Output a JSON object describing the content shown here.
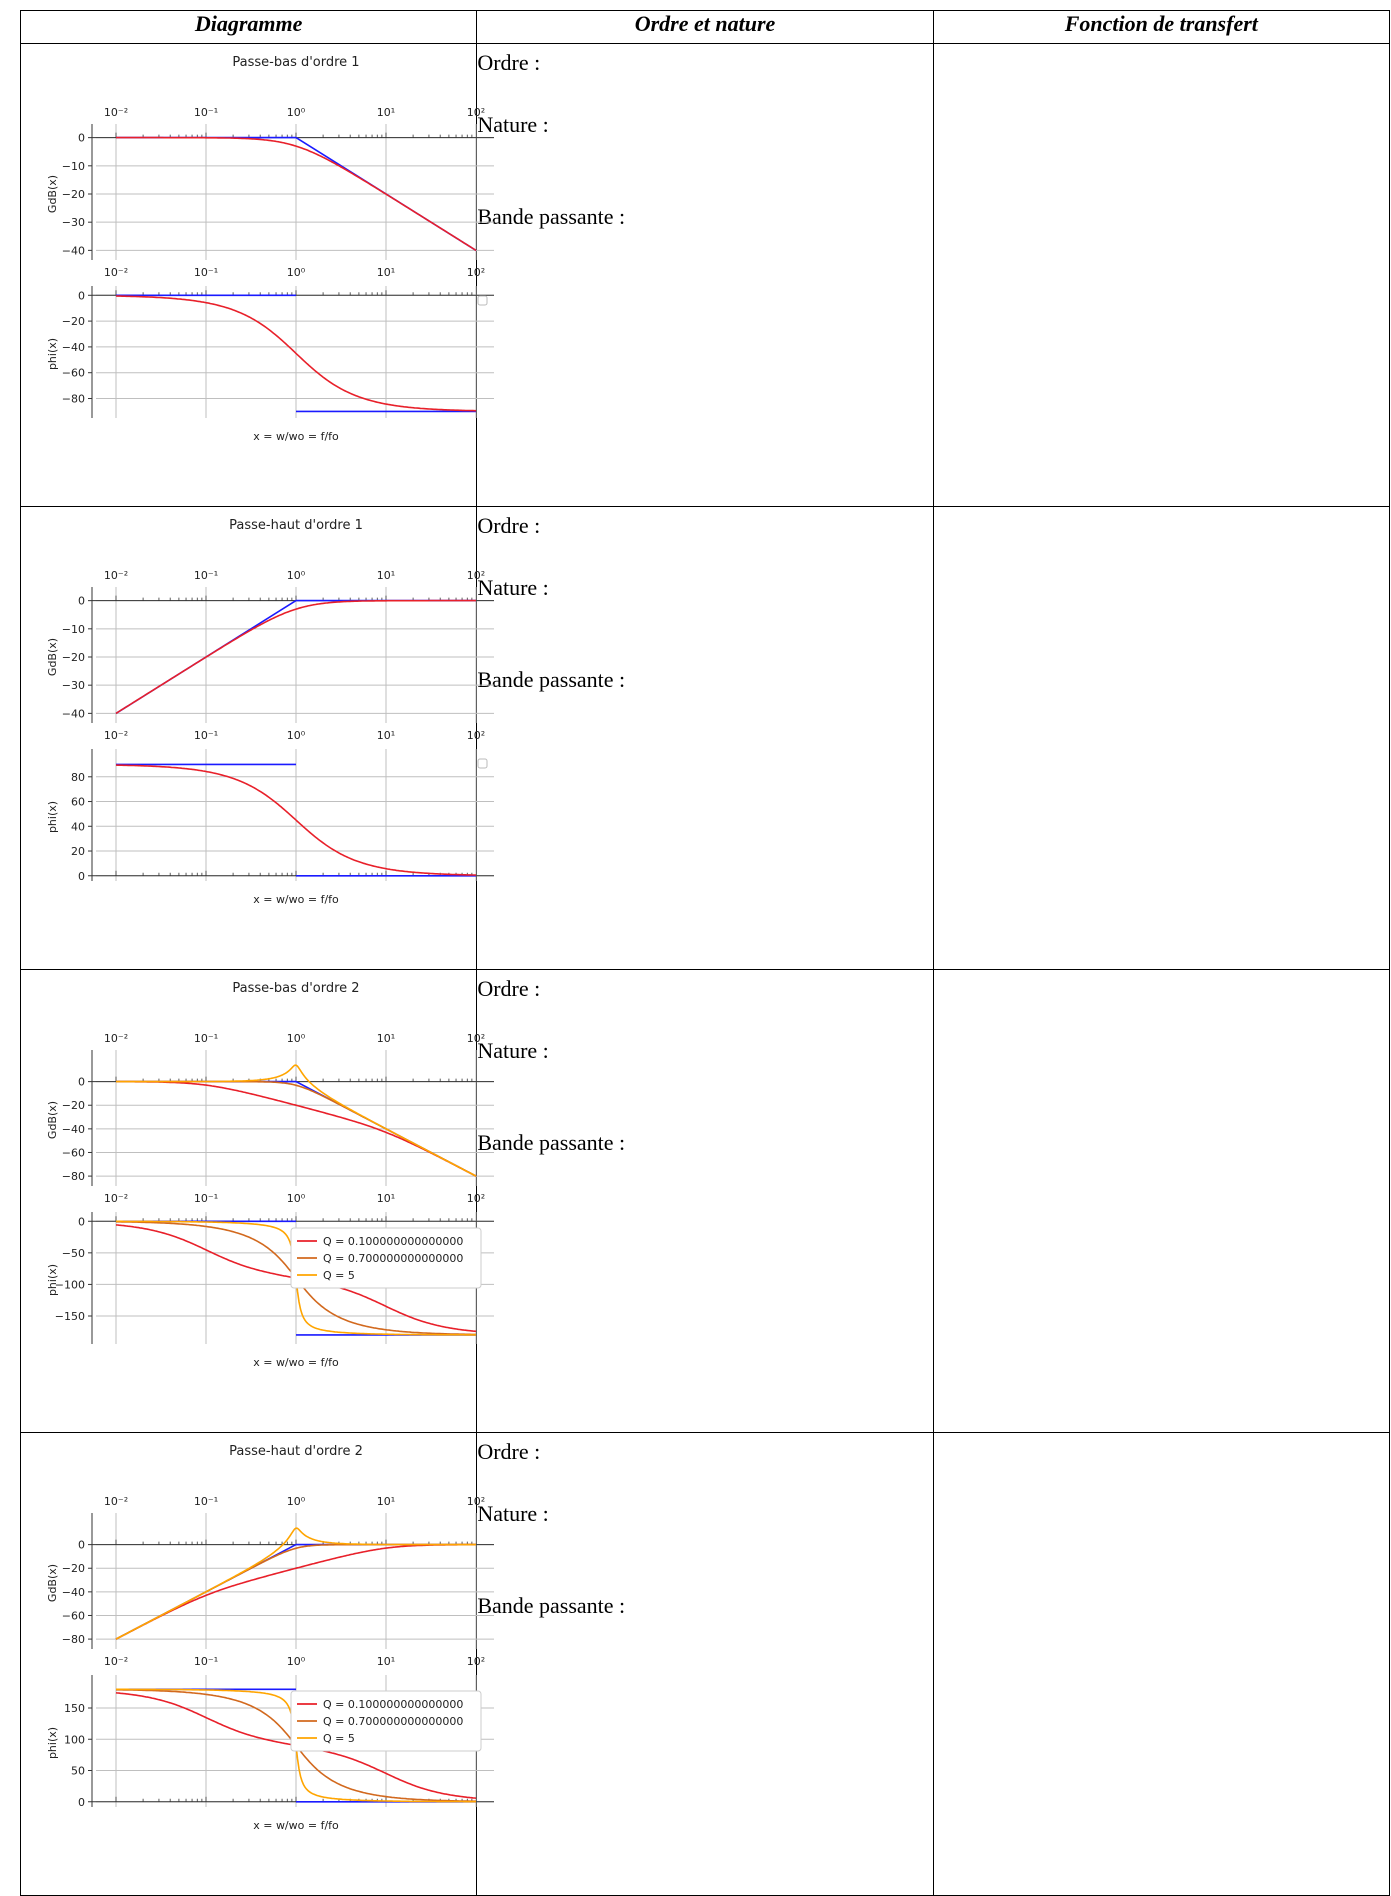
{
  "table": {
    "headers": [
      "Diagramme",
      "Ordre et nature",
      "Fonction de transfert"
    ],
    "row_labels": {
      "ordre": "Ordre :",
      "nature": "Nature :",
      "bande": "Bande passante :"
    }
  },
  "colors": {
    "asymptote": "#1a1aff",
    "q01": "#e8202a",
    "q07": "#d2691e",
    "q5": "#ffa500",
    "grid": "#bfbfbf"
  },
  "common": {
    "xlabel": "x = w/wo = f/fo",
    "gain_ylabel": "GdB(x)",
    "phase_ylabel": "phi(x)",
    "x_ticks": [
      "10⁻²",
      "10⁻¹",
      "10⁰",
      "10¹",
      "10²"
    ]
  },
  "chart_data": [
    {
      "type": "line",
      "title": "Passe-bas d'ordre 1",
      "kind": "lp1",
      "gain": {
        "ylabel": "GdB(x)",
        "ylim": [
          -42,
          2
        ],
        "yticks": [
          0,
          -10,
          -20,
          -30,
          -40
        ],
        "xscale": "log",
        "xlim": [
          0.01,
          100
        ]
      },
      "phase": {
        "ylabel": "phi(x)",
        "ylim": [
          -92,
          1
        ],
        "yticks": [
          0,
          -20,
          -40,
          -60,
          -80
        ],
        "xscale": "log",
        "xlim": [
          0.01,
          100
        ]
      },
      "xlabel": "x = w/wo = f/fo",
      "series": []
    },
    {
      "type": "line",
      "title": "Passe-haut d'ordre 1",
      "kind": "hp1",
      "gain": {
        "ylabel": "GdB(x)",
        "ylim": [
          -42,
          2
        ],
        "yticks": [
          0,
          -10,
          -20,
          -30,
          -40
        ],
        "xscale": "log",
        "xlim": [
          0.01,
          100
        ]
      },
      "phase": {
        "ylabel": "phi(x)",
        "ylim": [
          -1,
          96
        ],
        "yticks": [
          0,
          20,
          40,
          60,
          80
        ],
        "xscale": "log",
        "xlim": [
          0.01,
          100
        ]
      },
      "xlabel": "x = w/wo = f/fo",
      "series": []
    },
    {
      "type": "line",
      "title": "Passe-bas d'ordre 2",
      "kind": "lp2",
      "gain": {
        "ylabel": "GdB(x)",
        "ylim": [
          -85,
          20
        ],
        "yticks": [
          0,
          -20,
          -40,
          -60,
          -80
        ],
        "xscale": "log",
        "xlim": [
          0.01,
          100
        ]
      },
      "phase": {
        "ylabel": "phi(x)",
        "ylim": [
          -188,
          2
        ],
        "yticks": [
          0,
          -50,
          -100,
          -150
        ],
        "xscale": "log",
        "xlim": [
          0.01,
          100
        ]
      },
      "xlabel": "x = w/wo = f/fo",
      "series": [
        {
          "name": "Q = 0.100000000000000",
          "Q": 0.1
        },
        {
          "name": "Q = 0.700000000000000",
          "Q": 0.7
        },
        {
          "name": "Q = 5",
          "Q": 5
        }
      ]
    },
    {
      "type": "line",
      "title": "Passe-haut d'ordre 2",
      "kind": "hp2",
      "gain": {
        "ylabel": "GdB(x)",
        "ylim": [
          -85,
          20
        ],
        "yticks": [
          0,
          -20,
          -40,
          -60,
          -80
        ],
        "xscale": "log",
        "xlim": [
          0.01,
          100
        ]
      },
      "phase": {
        "ylabel": "phi(x)",
        "ylim": [
          -2,
          190
        ],
        "yticks": [
          0,
          50,
          100,
          150
        ],
        "xscale": "log",
        "xlim": [
          0.01,
          100
        ]
      },
      "xlabel": "x = w/wo = f/fo",
      "series": [
        {
          "name": "Q = 0.100000000000000",
          "Q": 0.1
        },
        {
          "name": "Q = 0.700000000000000",
          "Q": 0.7
        },
        {
          "name": "Q = 5",
          "Q": 5
        }
      ]
    }
  ]
}
